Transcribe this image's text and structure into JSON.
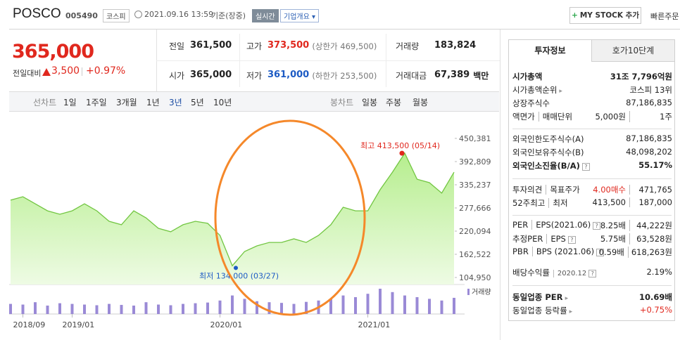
{
  "header": {
    "name": "POSCO",
    "code": "005490",
    "market": "코스피",
    "datetime": "2021.09.16 13:59",
    "basis": "기준(장중)",
    "realtime": "실시간",
    "overview": "기업개요",
    "my_stock": "MY STOCK 추가",
    "quick_order": "빠른주문"
  },
  "price": {
    "current": "365,000",
    "change_label": "전일대비",
    "change": "3,500",
    "change_pct": "+0.97%"
  },
  "summary": [
    {
      "label": "전일",
      "value": "361,500"
    },
    {
      "label": "고가",
      "value": "373,500",
      "note": "(상한가 469,500)"
    },
    {
      "label": "거래량",
      "value": "183,824"
    },
    {
      "label": "시가",
      "value": "365,000"
    },
    {
      "label": "저가",
      "value": "361,000",
      "note": "(하한가 253,500)"
    },
    {
      "label": "거래대금",
      "value": "67,389",
      "unit": "백만"
    }
  ],
  "chart_tabs": {
    "line_label": "선차트",
    "line_periods": [
      "1일",
      "1주일",
      "3개월",
      "1년",
      "3년",
      "5년",
      "10년"
    ],
    "candle_label": "봉차트",
    "candle_periods": [
      "일봉",
      "주봉",
      "월봉"
    ]
  },
  "chart_data": {
    "type": "line",
    "color": "#72c642",
    "fill": "#c9f3a9",
    "categories": [
      null,
      "2018/09",
      null,
      null,
      null,
      "2019/01",
      null,
      null,
      null,
      null,
      null,
      null,
      null,
      null,
      null,
      null,
      null,
      "2020/01",
      null,
      null,
      null,
      null,
      null,
      null,
      null,
      null,
      null,
      null,
      null,
      "2021/01",
      null,
      null,
      null,
      null,
      null,
      null,
      null
    ],
    "values": [
      297000,
      305500,
      288000,
      270500,
      262000,
      270500,
      288000,
      270500,
      244500,
      236000,
      270500,
      253000,
      227000,
      218500,
      236000,
      244500,
      239500,
      209500,
      134000,
      169500,
      183500,
      192000,
      192000,
      201000,
      192000,
      209500,
      236000,
      279500,
      270500,
      270500,
      323000,
      366500,
      413500,
      349000,
      340500,
      314500,
      366500
    ],
    "volume_label": "거래량",
    "volume_color": "#9a8ad6",
    "volume": [
      30,
      28,
      35,
      25,
      32,
      30,
      28,
      26,
      30,
      27,
      25,
      35,
      28,
      26,
      30,
      32,
      34,
      40,
      55,
      45,
      38,
      35,
      33,
      30,
      36,
      40,
      45,
      55,
      50,
      60,
      75,
      65,
      55,
      50,
      45,
      40,
      48
    ],
    "ylim": [
      104950,
      450381
    ],
    "yticks": [
      {
        "value": 450381,
        "label": "450,381"
      },
      {
        "value": 392809,
        "label": "392,809"
      },
      {
        "value": 335237,
        "label": "335,237"
      },
      {
        "value": 277666,
        "label": "277,666"
      },
      {
        "value": 220094,
        "label": "220,094"
      },
      {
        "value": 162522,
        "label": "162,522"
      },
      {
        "value": 104950,
        "label": "104,950"
      }
    ],
    "grid": false,
    "high": {
      "label": "최고 413,500 (05/14)",
      "value": 413500
    },
    "low": {
      "label": "최저 134,000 (03/27)",
      "value": 134000
    }
  },
  "info_panel": {
    "tabs": [
      "투자정보",
      "호가10단계"
    ],
    "groups": [
      [
        {
          "labels": [
            "시가총액"
          ],
          "values": [
            "31조 7,796억원"
          ]
        },
        {
          "labels": [
            "시가총액순위"
          ],
          "values": [
            "코스피 13위"
          ]
        },
        {
          "labels": [
            "상장주식수"
          ],
          "values": [
            "87,186,835"
          ]
        },
        {
          "labels": [
            "액면가",
            "매매단위"
          ],
          "values": [
            "5,000원",
            "1주"
          ]
        }
      ],
      [
        {
          "labels": [
            "외국인한도주식수(A)"
          ],
          "values": [
            "87,186,835"
          ]
        },
        {
          "labels": [
            "외국인보유주식수(B)"
          ],
          "values": [
            "48,098,202"
          ]
        },
        {
          "labels": [
            "외국인소진율(B/A)"
          ],
          "values": [
            "55.17%"
          ]
        }
      ],
      [
        {
          "labels": [
            "투자의견",
            "목표주가"
          ],
          "values": [
            "4.00매수",
            "471,765"
          ]
        },
        {
          "labels": [
            "52주최고",
            "최저"
          ],
          "values": [
            "413,500",
            "187,000"
          ]
        }
      ],
      [
        {
          "labels": [
            "PER",
            "EPS(2021.06)"
          ],
          "values": [
            "8.25배",
            "44,222원"
          ]
        },
        {
          "labels": [
            "추정PER",
            "EPS"
          ],
          "values": [
            "5.75배",
            "63,528원"
          ]
        },
        {
          "labels": [
            "PBR",
            "BPS (2021.06)"
          ],
          "values": [
            "0.59배",
            "618,263원"
          ]
        },
        {
          "labels": [
            "배당수익률",
            "2020.12"
          ],
          "values": [
            "2.19%"
          ]
        }
      ],
      [
        {
          "labels": [
            "동일업종 PER"
          ],
          "values": [
            "10.69배"
          ]
        },
        {
          "labels": [
            "동일업종 등락률"
          ],
          "values": [
            "+0.75%"
          ]
        }
      ]
    ]
  }
}
